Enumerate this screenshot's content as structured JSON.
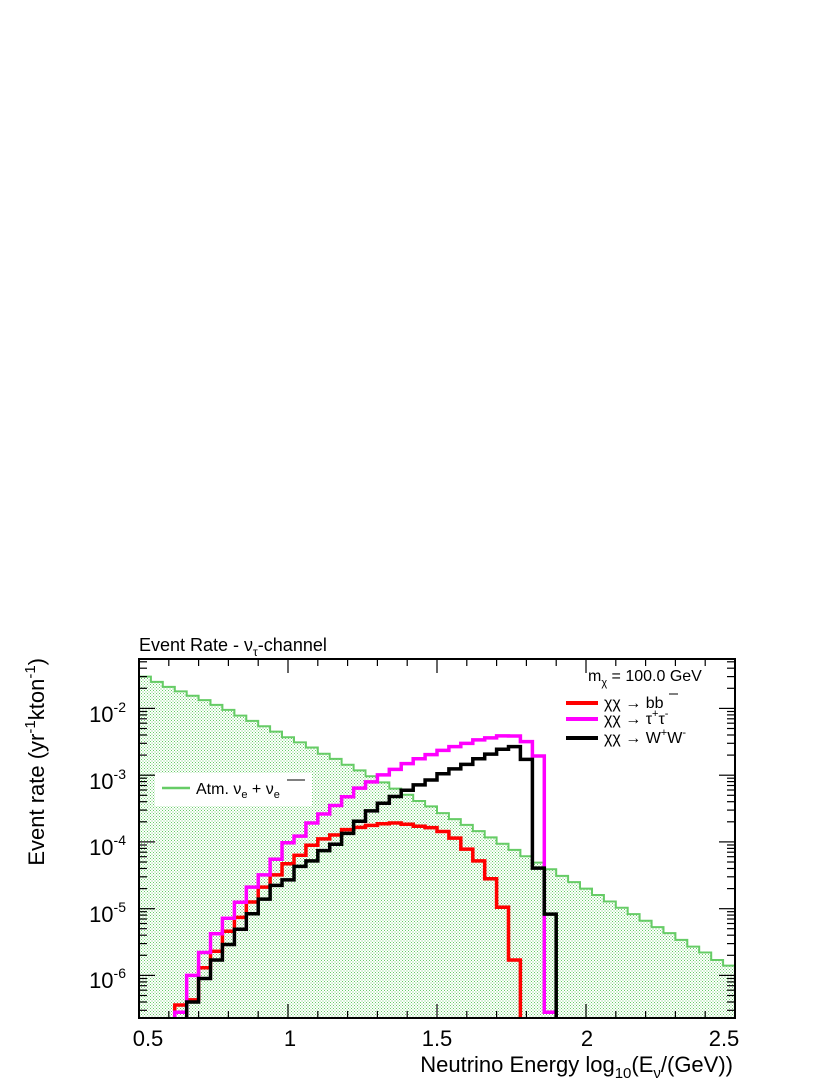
{
  "chart_data": {
    "type": "step-histogram",
    "title": "Event Rate - ν_τ-channel",
    "title_parts": {
      "prefix": "Event Rate - ν",
      "sub": "τ",
      "suffix": "-channel"
    },
    "xlabel": "Neutrino Energy log10(Eν/(GeV))",
    "xlabel_parts": {
      "a": "Neutrino Energy log",
      "sub1": "10",
      "b": "(E",
      "sub2": "ν",
      "c": "/(GeV))"
    },
    "ylabel": "Event rate (yr-1kton-1)",
    "ylabel_parts": {
      "a": "Event rate (yr",
      "sup1": "-1",
      "b": "kton",
      "sup2": "-1",
      "c": ")"
    },
    "x_scale": "linear",
    "y_scale": "log",
    "xlim": [
      0.5,
      2.5
    ],
    "ylim": [
      2.3e-07,
      0.055
    ],
    "x_ticks": [
      {
        "v": 0.5,
        "label": "0.5"
      },
      {
        "v": 1.0,
        "label": "1"
      },
      {
        "v": 1.5,
        "label": "1.5"
      },
      {
        "v": 2.0,
        "label": "2"
      },
      {
        "v": 2.5,
        "label": "2.5"
      }
    ],
    "y_ticks": [
      {
        "v": 1e-06,
        "base": "10",
        "exp": "-6"
      },
      {
        "v": 1e-05,
        "base": "10",
        "exp": "-5"
      },
      {
        "v": 0.0001,
        "base": "10",
        "exp": "-4"
      },
      {
        "v": 0.001,
        "base": "10",
        "exp": "-3"
      },
      {
        "v": 0.01,
        "base": "10",
        "exp": "-2"
      }
    ],
    "mass_label": {
      "a": "m",
      "sub": "χ",
      "b": " = 100.0 GeV"
    },
    "bin_width": 0.04,
    "bin_start": 0.5,
    "series": [
      {
        "name": "Atm. νe + νe-bar",
        "label_parts": {
          "a": "Atm. ν",
          "sub1": "e",
          "b": " + ",
          "c": "ν",
          "sub2": "e"
        },
        "style": "filled-hatched",
        "color": "#66cc66",
        "values": [
          0.03,
          0.025,
          0.021,
          0.018,
          0.0155,
          0.0133,
          0.0113,
          0.0095,
          0.0078,
          0.0065,
          0.0054,
          0.0045,
          0.0037,
          0.0031,
          0.0026,
          0.0021,
          0.00175,
          0.00143,
          0.00118,
          0.00096,
          0.00078,
          0.00063,
          0.00051,
          0.00041,
          0.00034,
          0.00027,
          0.00022,
          0.00018,
          0.000145,
          0.000117,
          9.4e-05,
          7.6e-05,
          6.1e-05,
          4.9e-05,
          3.9e-05,
          3.1e-05,
          2.5e-05,
          2e-05,
          1.6e-05,
          1.28e-05,
          1.03e-05,
          8.3e-06,
          6.6e-06,
          5.3e-06,
          4.3e-06,
          3.4e-06,
          2.7e-06,
          2.2e-06,
          1.7e-06,
          1.4e-06
        ]
      },
      {
        "name": "χχ → bb̄",
        "label_parts": {
          "a": "χχ → b",
          "b": "b"
        },
        "style": "line",
        "color": "#ff0000",
        "values": [
          null,
          null,
          null,
          3.6e-07,
          4.3e-07,
          1.3e-06,
          2.3e-06,
          4.6e-06,
          7.4e-06,
          1.26e-05,
          2.1e-05,
          3.2e-05,
          4.7e-05,
          6.3e-05,
          8.9e-05,
          0.000111,
          0.000127,
          0.000153,
          0.000165,
          0.000177,
          0.000187,
          0.000192,
          0.000184,
          0.000172,
          0.000164,
          0.000143,
          0.000114,
          7.8e-05,
          5.2e-05,
          2.8e-05,
          1.05e-05,
          1.7e-06,
          2.1e-07,
          null,
          null,
          null,
          null,
          null,
          null,
          null,
          null,
          null,
          null,
          null,
          null,
          null,
          null,
          null,
          null,
          null
        ]
      },
      {
        "name": "χχ → τ⁺τ⁻",
        "label_parts": {
          "a": "χχ → τ",
          "sup1": "+",
          "b": "τ",
          "sup2": "-"
        },
        "style": "line",
        "color": "#ff00ff",
        "values": [
          null,
          null,
          null,
          2.8e-07,
          1e-06,
          2.2e-06,
          4.2e-06,
          7.2e-06,
          1.25e-05,
          2.1e-05,
          3.2e-05,
          5.5e-05,
          9.7e-05,
          0.000122,
          0.000192,
          0.000262,
          0.000351,
          0.000476,
          0.000639,
          0.000792,
          0.00101,
          0.00122,
          0.00149,
          0.00176,
          0.00203,
          0.00235,
          0.00268,
          0.00299,
          0.00337,
          0.00362,
          0.00388,
          0.00386,
          0.00318,
          0.00194,
          2.8e-07,
          null,
          null,
          null,
          null,
          null,
          null,
          null,
          null,
          null,
          null,
          null,
          null,
          null,
          null,
          null
        ]
      },
      {
        "name": "χχ → W⁺W⁻",
        "label_parts": {
          "a": "χχ → W",
          "sup1": "+",
          "b": "W",
          "sup2": "-"
        },
        "style": "line",
        "color": "#000000",
        "values": [
          null,
          null,
          null,
          null,
          4e-07,
          9e-07,
          1.7e-06,
          2.9e-06,
          4.9e-06,
          8.4e-06,
          1.39e-05,
          2.23e-05,
          2.7e-05,
          4.3e-05,
          5.2e-05,
          7.4e-05,
          9.2e-05,
          0.000134,
          0.000204,
          0.000291,
          0.00038,
          0.000479,
          0.000593,
          0.000714,
          0.000847,
          0.00105,
          0.00124,
          0.00145,
          0.00176,
          0.00207,
          0.00245,
          0.00268,
          0.00172,
          4.05e-05,
          8.3e-06,
          null,
          null,
          null,
          null,
          null,
          null,
          null,
          null,
          null,
          null,
          null,
          null,
          null,
          null,
          null
        ]
      }
    ],
    "legends": [
      {
        "position": "left-middle",
        "entries": [
          "Atm. νe + νe-bar"
        ]
      },
      {
        "position": "top-right",
        "entries": [
          "χχ → bb̄",
          "χχ → τ⁺τ⁻",
          "χχ → W⁺W⁻"
        ]
      }
    ]
  }
}
